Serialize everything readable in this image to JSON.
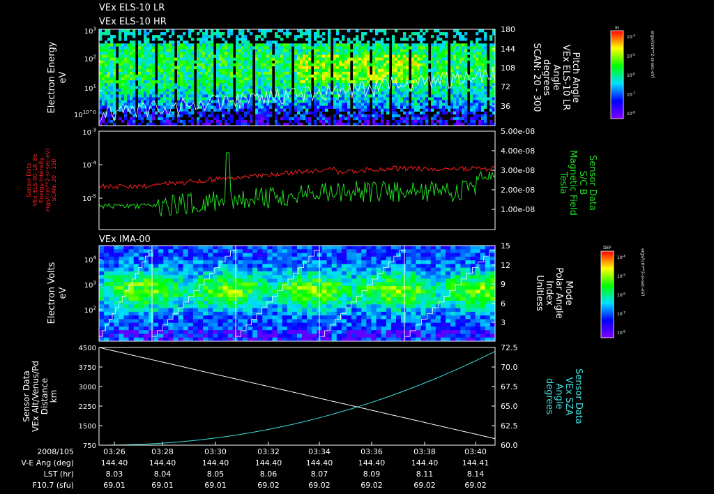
{
  "chart_data": [
    {
      "type": "heatmap",
      "titles": [
        "VEx ELS-10 LR",
        "VEx ELS-10 HR"
      ],
      "ylabel": [
        "Electron Energy",
        "eV"
      ],
      "yticks": [
        "10^0",
        "10^1",
        "10^2",
        "10^3"
      ],
      "y2label": [
        "Pitch Angle",
        "VEx ELS-10 LR",
        "Angle",
        "degrees",
        "SCAN: 20 - 300"
      ],
      "y2ticks": [
        "180",
        "144",
        "108",
        "72",
        "36"
      ],
      "colorbar": {
        "title": "El",
        "label": "ergs/(cm**2-sr-sec-eV)",
        "ticks": [
          "10^-4",
          "10^-5",
          "10^-6",
          "10^-7",
          "10^-8"
        ]
      }
    },
    {
      "type": "line",
      "ylabel": [
        "Sensor Data",
        "VEx_ELS-00_LR_Bk",
        "Energy Intensity",
        "ergs/(cm**2-sr-sec-eV)",
        "SCAN: 20 - 150"
      ],
      "yticks": [
        "10^-3",
        "10^-4",
        "10^-5"
      ],
      "y2label": [
        "Sensor Data",
        "S/C B",
        "Magnetic Field",
        "Tesla"
      ],
      "y2ticks": [
        "5.00e-08",
        "4.00e-08",
        "3.00e-08",
        "2.00e-08",
        "1.00e-08"
      ],
      "series_colors": [
        "#ff2020",
        "#22dd22"
      ]
    },
    {
      "type": "heatmap",
      "titles": [
        "VEx IMA-00"
      ],
      "ylabel": [
        "Electron Volts",
        "eV"
      ],
      "yticks": [
        "10^2",
        "10^3",
        "10^4"
      ],
      "y2label": [
        "Mode",
        "Polar Angle",
        "Index",
        "Unitless"
      ],
      "y2ticks": [
        "15",
        "12",
        "9",
        "6",
        "3"
      ],
      "colorbar": {
        "title": "DEF",
        "label": "ergs/(cm**2-sr-sec-eV)",
        "ticks": [
          "10^-4",
          "10^-5",
          "10^-6",
          "10^-7",
          "10^-8"
        ]
      }
    },
    {
      "type": "line",
      "ylabel": [
        "Sensor Data",
        "VEx Alt/Venus/Pd",
        "Distance",
        "km"
      ],
      "yticks": [
        "4500",
        "3750",
        "3000",
        "2250",
        "1500",
        "750"
      ],
      "ylim": [
        750,
        4500
      ],
      "y2label": [
        "Sensor Data",
        "VEx SZA",
        "Angle",
        "degrees"
      ],
      "y2ticks": [
        "72.5",
        "70.0",
        "67.5",
        "65.0",
        "62.5",
        "60.0"
      ],
      "y2lim": [
        60,
        72.5
      ],
      "x": [
        "03:26",
        "03:41"
      ],
      "series": [
        {
          "values": [
            4500,
            1000
          ],
          "color": "#ffffff"
        },
        {
          "values": [
            60.0,
            72.0
          ],
          "color": "#40e0e0"
        }
      ]
    }
  ],
  "x_axis": {
    "date_label": "2008/105",
    "ticks": [
      "03:26",
      "03:28",
      "03:30",
      "03:32",
      "03:34",
      "03:36",
      "03:38",
      "03:40"
    ],
    "rows": [
      {
        "label": "V-E Ang (deg)",
        "values": [
          "144.40",
          "144.40",
          "144.40",
          "144.40",
          "144.40",
          "144.40",
          "144.40",
          "144.41"
        ]
      },
      {
        "label": "LST (hr)",
        "values": [
          "8.03",
          "8.04",
          "8.05",
          "8.06",
          "8.07",
          "8.09",
          "8.11",
          "8.14"
        ]
      },
      {
        "label": "F10.7 (sfu)",
        "values": [
          "69.01",
          "69.01",
          "69.01",
          "69.02",
          "69.02",
          "69.02",
          "69.02",
          "69.02"
        ]
      }
    ]
  }
}
